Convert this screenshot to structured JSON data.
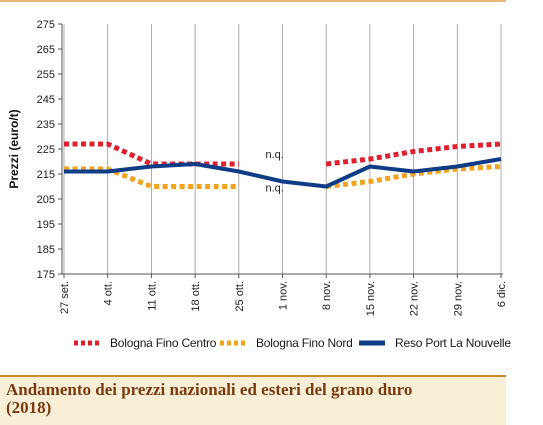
{
  "chart_data": {
    "type": "line",
    "ylabel": "Prezzi (euro/t)",
    "xlabel": "",
    "ylim": [
      175,
      275
    ],
    "yticks": [
      175,
      185,
      195,
      205,
      215,
      225,
      235,
      245,
      255,
      265,
      275
    ],
    "categories": [
      "27 set.",
      "4 ott.",
      "11 ott.",
      "18 ott.",
      "25 ott.",
      "1 nov.",
      "8 nov.",
      "15 nov.",
      "22 nov.",
      "29 nov.",
      "6 dic."
    ],
    "grid": "vertical",
    "legend_position": "bottom",
    "series": [
      {
        "name": "Bologna Fino Centro",
        "color": "#e0202e",
        "style": "dotted",
        "values": [
          227,
          227,
          219,
          219,
          219,
          null,
          219,
          221,
          224,
          226,
          227
        ]
      },
      {
        "name": "Bologna Fino Nord",
        "color": "#f2a21d",
        "style": "dotted",
        "values": [
          217,
          217,
          210,
          210,
          210,
          null,
          210,
          212,
          215,
          217,
          218
        ]
      },
      {
        "name": "Reso Port La Nouvelle",
        "color": "#0f3c86",
        "style": "solid",
        "values": [
          216,
          216,
          218,
          219,
          216,
          212,
          210,
          218,
          216,
          218,
          221
        ]
      }
    ],
    "annotations": [
      "n.q.",
      "n.q."
    ]
  },
  "caption": {
    "title": "Andamento dei prezzi nazionali ed esteri del grano duro (2018)"
  }
}
